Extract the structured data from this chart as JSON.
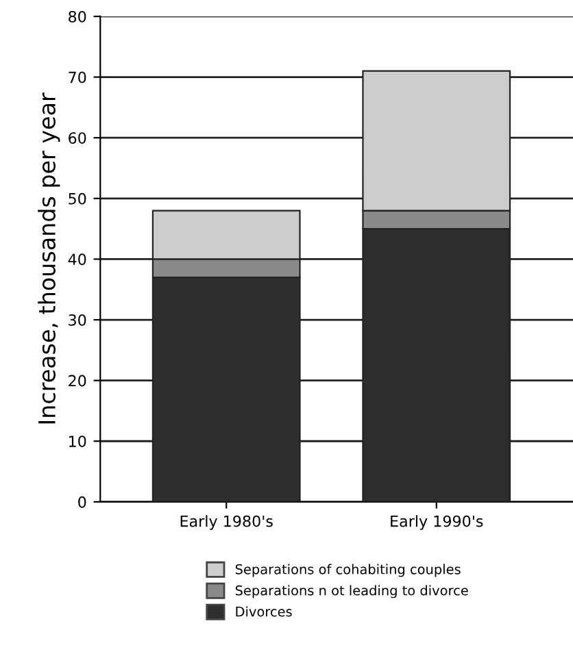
{
  "chart_data": {
    "type": "bar",
    "stacked": true,
    "ylabel": "Increase, thousands per year",
    "categories": [
      "Early 1980's",
      "Early 1990's"
    ],
    "series": [
      {
        "name": "Divorces",
        "color": "#2e2e2e",
        "values": [
          37,
          45
        ]
      },
      {
        "name": "Separations n ot leading to divorce",
        "color": "#8a8a8a",
        "values": [
          3,
          3
        ]
      },
      {
        "name": "Separations of cohabiting couples",
        "color": "#cccccc",
        "values": [
          8,
          23
        ]
      }
    ],
    "ylim": [
      0,
      80
    ],
    "yticks": [
      0,
      10,
      20,
      30,
      40,
      50,
      60,
      70,
      80
    ],
    "grid": "y",
    "legend": "bottom"
  }
}
